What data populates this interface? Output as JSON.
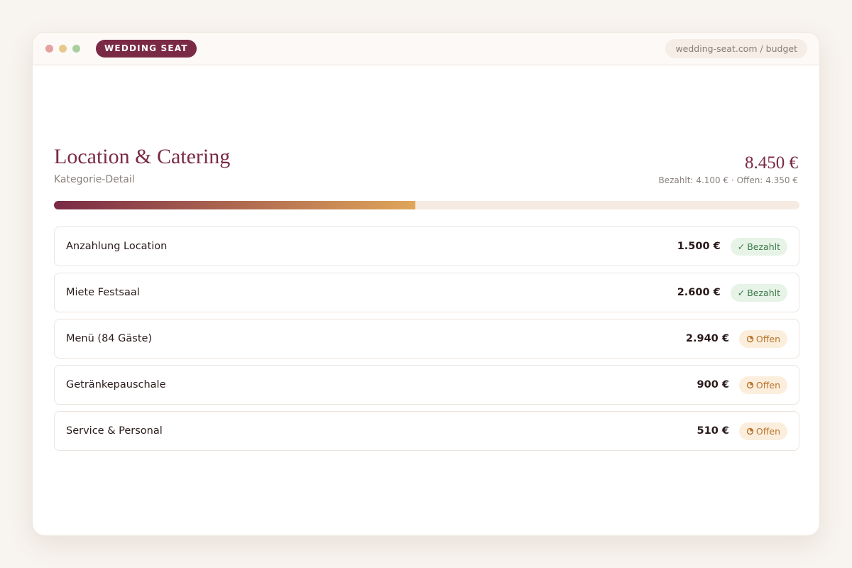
{
  "browser": {
    "brand": "WEDDING SEAT",
    "url": "wedding-seat.com / budget"
  },
  "header": {
    "title": "Location & Catering",
    "subtitle": "Kategorie-Detail"
  },
  "summary": {
    "total": {
      "value": 8450,
      "label": "8.450 €"
    },
    "paid_label": "Bezahlt:",
    "paid": {
      "value": 4100,
      "label": "4.100 €"
    },
    "separator": "·",
    "open_label": "Offen:",
    "open": {
      "value": 4350,
      "label": "4.350 €"
    }
  },
  "items": [
    {
      "name": "Anzahlung Location",
      "amount": "1.500 €",
      "status_icon": "✓",
      "status": "Bezahlt",
      "badge_color": "#3d7a4a",
      "badge_background": "#e6f3e6"
    },
    {
      "name": "Miete Festsaal",
      "amount": "2.600 €",
      "status_icon": "✓",
      "status": "Bezahlt",
      "badge_color": "#3d7a4a",
      "badge_background": "#e6f3e6"
    },
    {
      "name": "Menü (84 Gäste)",
      "amount": "2.940 €",
      "status": "Offen",
      "badge_color": "#b8742a",
      "badge_background": "#fbeedd"
    },
    {
      "name": "Getränkepauschale",
      "amount": "900 €",
      "status": "Offen",
      "badge_color": "#b8742a",
      "badge_background": "#fbeedd"
    },
    {
      "name": "Service & Personal",
      "amount": "510 €",
      "status": "Offen",
      "badge_color": "#b8742a",
      "badge_background": "#fbeedd"
    }
  ]
}
